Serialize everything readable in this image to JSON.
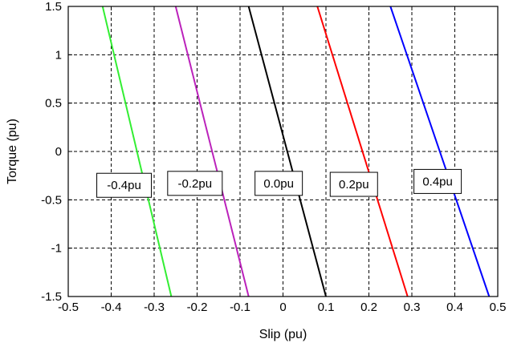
{
  "chart_data": {
    "type": "line",
    "xlabel": "Slip (pu)",
    "ylabel": "Torque (pu)",
    "xlim": [
      -0.5,
      0.5
    ],
    "ylim": [
      -1.5,
      1.5
    ],
    "grid": true,
    "xticks": [
      "-0.5",
      "-0.4",
      "-0.3",
      "-0.2",
      "-0.1",
      "0",
      "0.1",
      "0.2",
      "0.3",
      "0.4",
      "0.5"
    ],
    "yticks": [
      "1.5",
      "1",
      "0.5",
      "0",
      "-0.5",
      "-1",
      "-1.5"
    ],
    "series": [
      {
        "name": "-0.4pu",
        "color": "#33ee33",
        "x": [
          -0.42,
          -0.26
        ],
        "y": [
          1.5,
          -1.5
        ]
      },
      {
        "name": "-0.2pu",
        "color": "#bb22bb",
        "x": [
          -0.25,
          -0.08
        ],
        "y": [
          1.5,
          -1.5
        ]
      },
      {
        "name": "0.0pu",
        "color": "#000000",
        "x": [
          -0.08,
          0.1
        ],
        "y": [
          1.5,
          -1.5
        ]
      },
      {
        "name": "0.2pu",
        "color": "#ff0000",
        "x": [
          0.08,
          0.29
        ],
        "y": [
          1.5,
          -1.5
        ]
      },
      {
        "name": "0.4pu",
        "color": "#0000ff",
        "x": [
          0.25,
          0.48
        ],
        "y": [
          1.5,
          -1.5
        ]
      }
    ],
    "annotations": [
      {
        "text": "-0.4pu",
        "x": -0.37,
        "y": -0.35
      },
      {
        "text": "-0.2pu",
        "x": -0.205,
        "y": -0.33
      },
      {
        "text": "0.0pu",
        "x": -0.01,
        "y": -0.33
      },
      {
        "text": "0.2pu",
        "x": 0.165,
        "y": -0.34
      },
      {
        "text": "0.4pu",
        "x": 0.36,
        "y": -0.31
      }
    ]
  }
}
